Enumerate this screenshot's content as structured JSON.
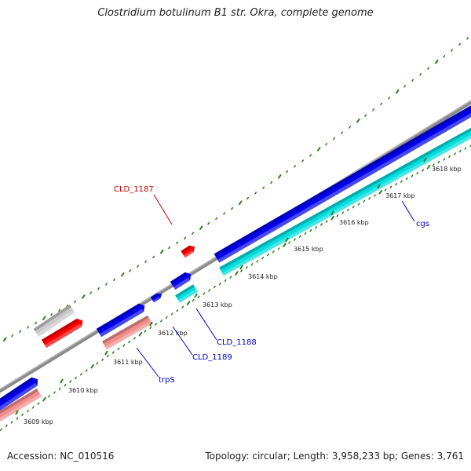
{
  "title": "Clostridium botulinum B1 str. Okra, complete genome",
  "footer": {
    "accession": "Accession: NC_010516",
    "summary": "Topology: circular; Length: 3,958,233 bp; Genes: 3,761"
  },
  "colors": {
    "backbone": "#8a8a8a",
    "forward_cds": "#0000ee",
    "reverse_cds": "#00dddd",
    "reverse_cds_pale": "#f28c8c",
    "forward_other": "#ff0000",
    "grey_feature": "#c8c8c8",
    "tick": "#2e7d1e",
    "forward_label": "#cc0000",
    "reverse_label": "#0000cc"
  },
  "ticks": [
    {
      "label": "3609 kbp"
    },
    {
      "label": "3610 kbp"
    },
    {
      "label": "3611 kbp"
    },
    {
      "label": "3612 kbp"
    },
    {
      "label": "3613 kbp"
    },
    {
      "label": "3614 kbp"
    },
    {
      "label": "3615 kbp"
    },
    {
      "label": "3616 kbp"
    },
    {
      "label": "3617 kbp"
    },
    {
      "label": "3618 kbp"
    }
  ],
  "gene_labels": [
    {
      "name": "CLD_1187",
      "strand": "forward"
    },
    {
      "name": "CLD_1188",
      "strand": "reverse"
    },
    {
      "name": "CLD_1189",
      "strand": "reverse"
    },
    {
      "name": "trpS",
      "strand": "reverse"
    },
    {
      "name": "cgs",
      "strand": "reverse"
    }
  ]
}
